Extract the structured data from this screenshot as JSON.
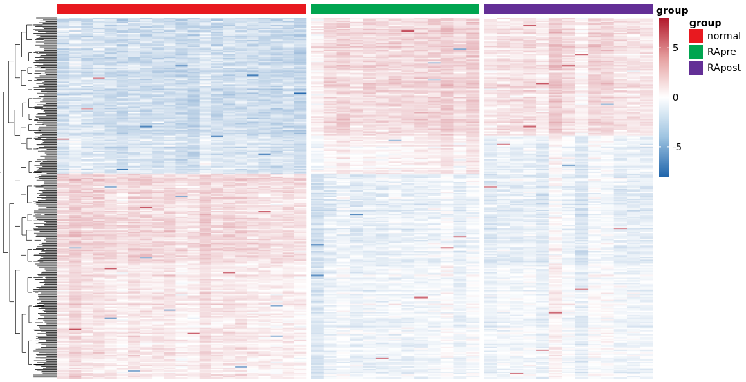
{
  "chart_data": {
    "type": "heatmap",
    "annotation": {
      "title": "group",
      "groups": [
        {
          "name": "normal",
          "color": "#e8191f",
          "columns": 21
        },
        {
          "name": "RApre",
          "color": "#00a550",
          "columns": 13
        },
        {
          "name": "RApost",
          "color": "#632f96",
          "columns": 13
        }
      ]
    },
    "colorbar": {
      "title": "group",
      "min": -8,
      "max": 8,
      "ticks": [
        5,
        0,
        -5
      ],
      "colors": {
        "low": "#2166ac",
        "mid": "#ffffff",
        "high": "#b2182b"
      }
    },
    "rows": 520,
    "row_dendrogram": true,
    "row_blocks": [
      {
        "rows": 170,
        "means": {
          "normal": -1.7,
          "RApre": 1.2,
          "RApost": 1.0
        }
      },
      {
        "rows": 55,
        "means": {
          "normal": -1.3,
          "RApre": 0.3,
          "RApost": -0.6
        }
      },
      {
        "rows": 130,
        "means": {
          "normal": 1.1,
          "RApre": -0.9,
          "RApost": -0.8
        }
      },
      {
        "rows": 165,
        "means": {
          "normal": 0.7,
          "RApre": -0.5,
          "RApost": -0.3
        }
      }
    ],
    "legend_entries": [
      "normal",
      "RApre",
      "RApost"
    ]
  }
}
